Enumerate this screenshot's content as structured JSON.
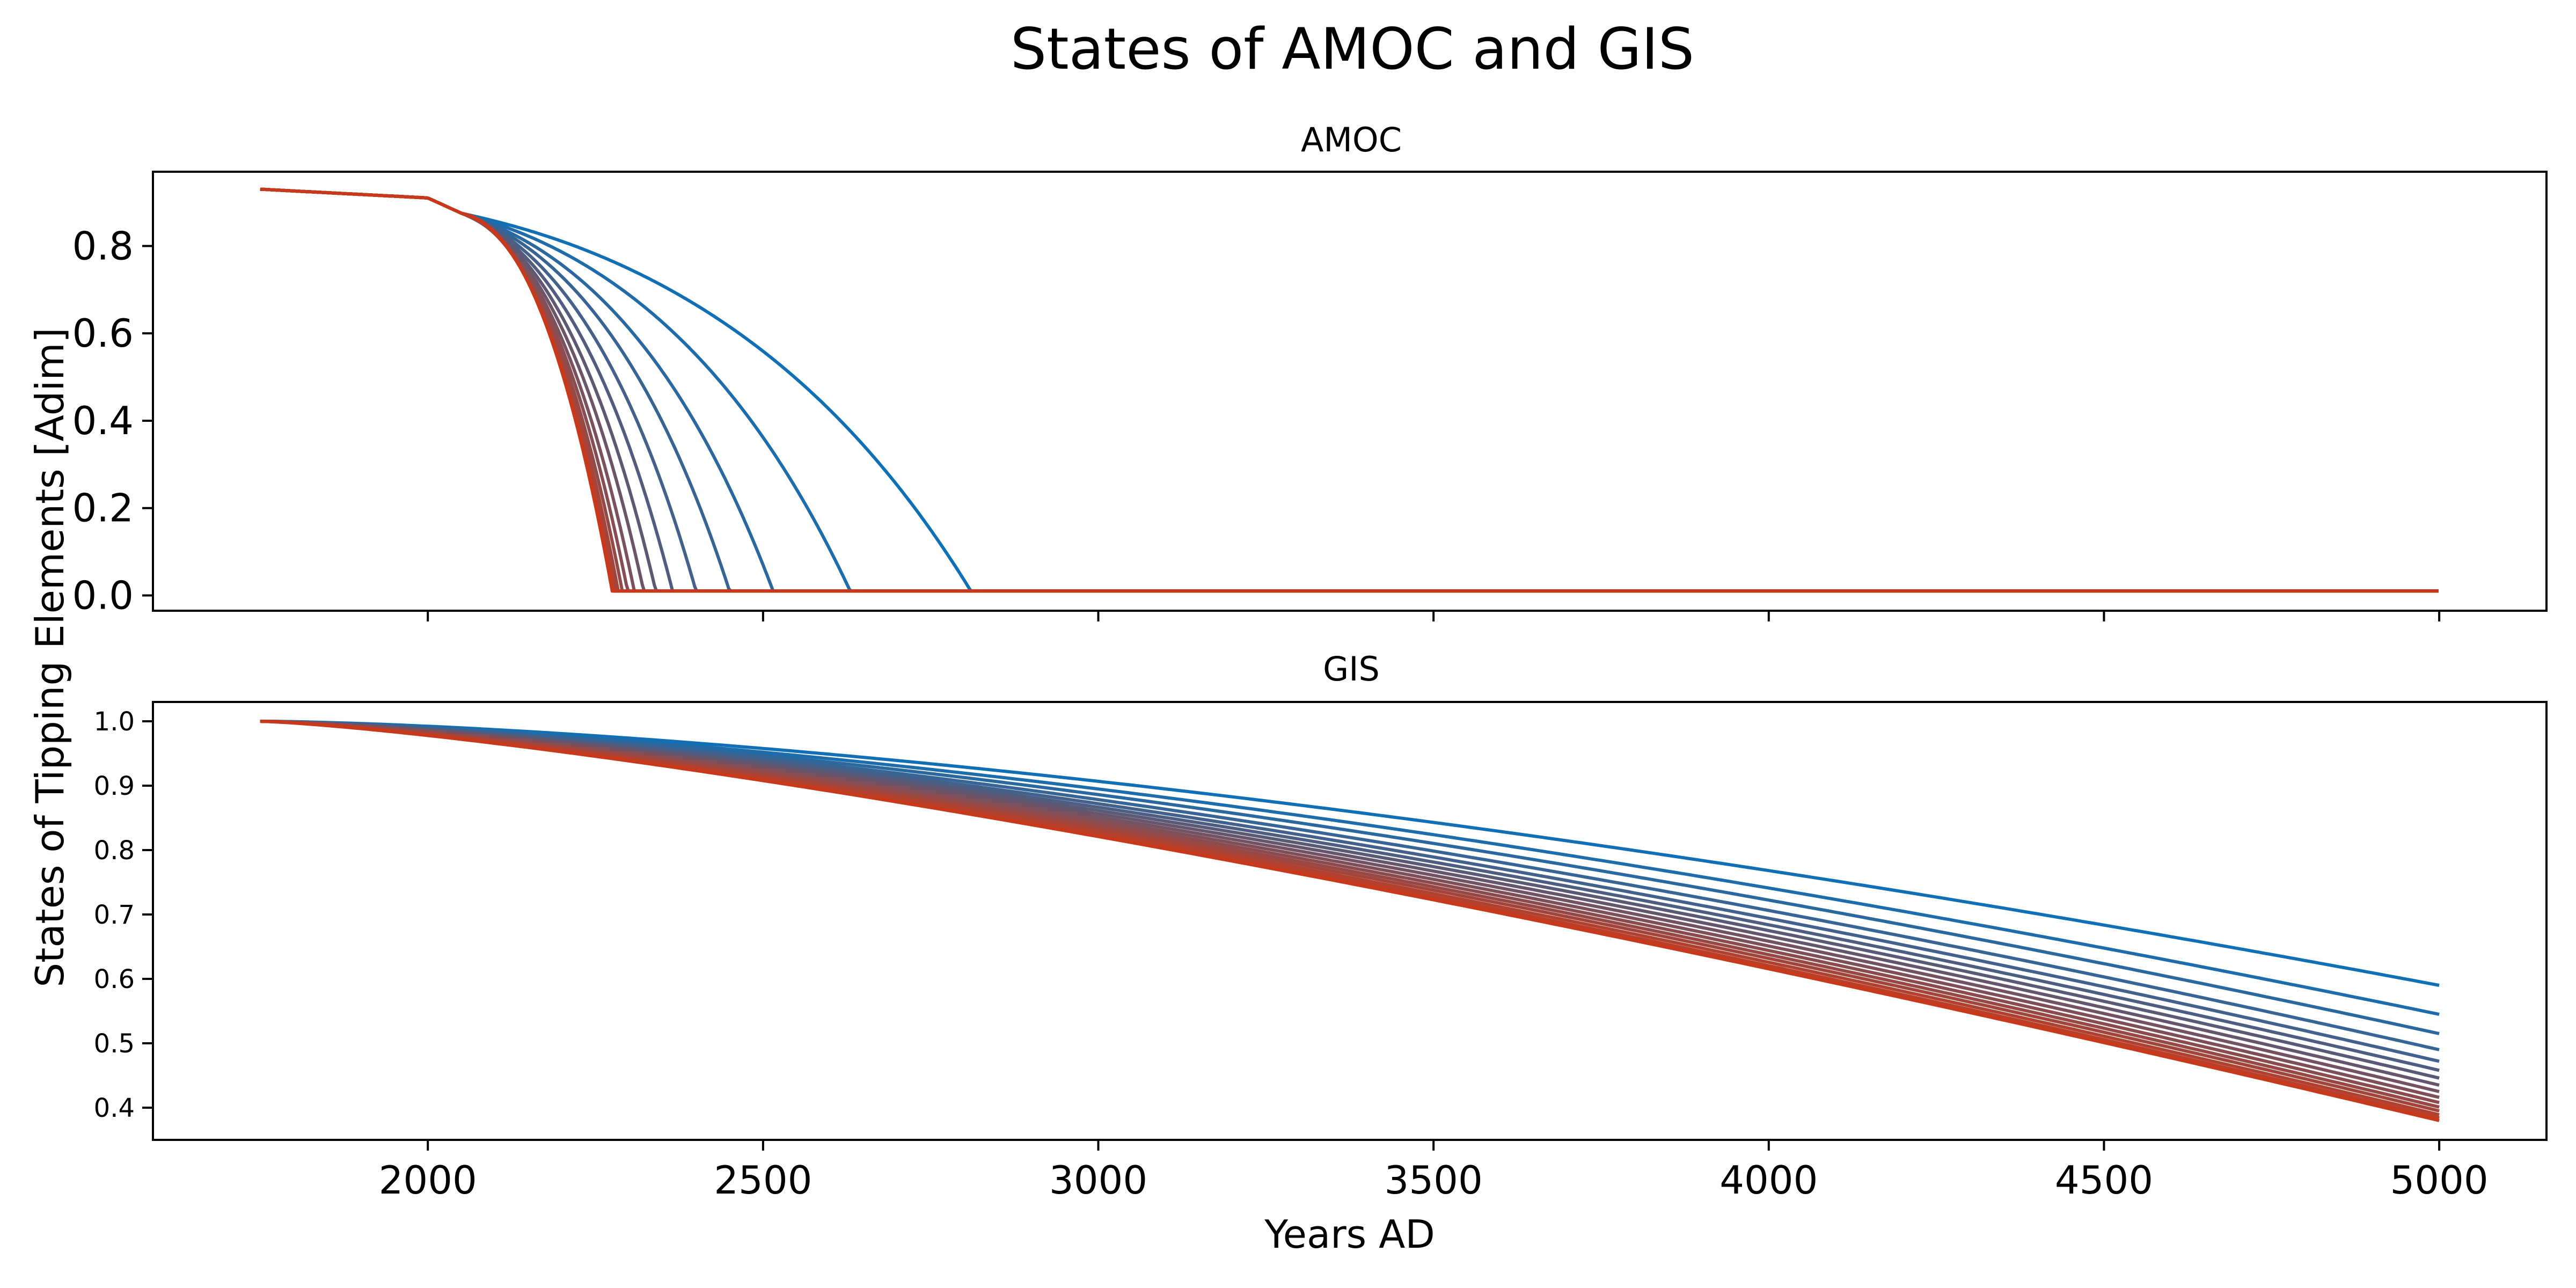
{
  "chart_data": {
    "title": "States of AMOC and GIS",
    "xlabel": "Years AD",
    "ylabel": "States of Tipping Elements [Adim]",
    "x_range": [
      1750,
      5000
    ],
    "xlim": [
      1590,
      5160
    ],
    "xticks": [
      2000,
      2500,
      3000,
      3500,
      4000,
      4500,
      5000
    ],
    "color_start": "#1170b5",
    "color_end": "#c8391b",
    "grid": false,
    "legend": "none",
    "panels": [
      {
        "title": "AMOC",
        "type": "line",
        "ylim": [
          -0.035,
          0.97
        ],
        "yticks": [
          "0.0",
          "0.2",
          "0.4",
          "0.6",
          "0.8"
        ],
        "initial_value": 0.93,
        "final_value": 0.01,
        "shared_until_year": 2050,
        "series_collapse_year": [
          2810,
          2630,
          2515,
          2450,
          2400,
          2365,
          2340,
          2322,
          2308,
          2298,
          2290,
          2284,
          2280,
          2277,
          2275
        ]
      },
      {
        "title": "GIS",
        "type": "line",
        "ylim": [
          0.35,
          1.03
        ],
        "yticks": [
          "0.4",
          "0.5",
          "0.6",
          "0.7",
          "0.8",
          "0.9",
          "1.0"
        ],
        "initial_value": 1.0,
        "series_value_at_5000": [
          0.59,
          0.545,
          0.515,
          0.49,
          0.472,
          0.458,
          0.446,
          0.435,
          0.425,
          0.416,
          0.408,
          0.401,
          0.395,
          0.389,
          0.384,
          0.38
        ]
      }
    ]
  }
}
